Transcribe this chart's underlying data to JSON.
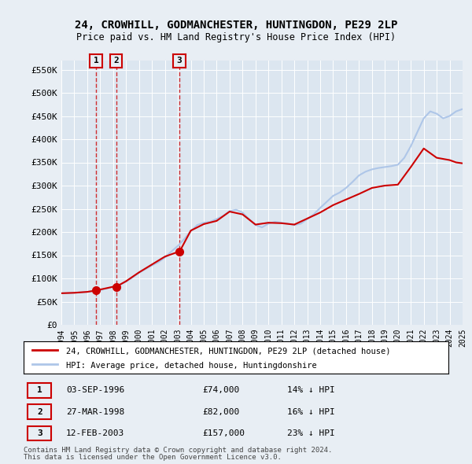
{
  "title": "24, CROWHILL, GODMANCHESTER, HUNTINGDON, PE29 2LP",
  "subtitle": "Price paid vs. HM Land Registry's House Price Index (HPI)",
  "ylabel_ticks": [
    "£0",
    "£50K",
    "£100K",
    "£150K",
    "£200K",
    "£250K",
    "£300K",
    "£350K",
    "£400K",
    "£450K",
    "£500K",
    "£550K"
  ],
  "ytick_values": [
    0,
    50000,
    100000,
    150000,
    200000,
    250000,
    300000,
    350000,
    400000,
    450000,
    500000,
    550000
  ],
  "ylim": [
    0,
    570000
  ],
  "xmin": 1994,
  "xmax": 2025,
  "hpi_color": "#aec6e8",
  "price_color": "#cc0000",
  "bg_color": "#e8eef4",
  "plot_bg": "#dce6f0",
  "legend_label_red": "24, CROWHILL, GODMANCHESTER, HUNTINGDON, PE29 2LP (detached house)",
  "legend_label_blue": "HPI: Average price, detached house, Huntingdonshire",
  "transactions": [
    {
      "num": 1,
      "date": "03-SEP-1996",
      "price": 74000,
      "pct": "14%",
      "year": 1996.67
    },
    {
      "num": 2,
      "date": "27-MAR-1998",
      "price": 82000,
      "pct": "16%",
      "year": 1998.23
    },
    {
      "num": 3,
      "date": "12-FEB-2003",
      "price": 157000,
      "pct": "23%",
      "year": 2003.12
    }
  ],
  "footnote1": "Contains HM Land Registry data © Crown copyright and database right 2024.",
  "footnote2": "This data is licensed under the Open Government Licence v3.0.",
  "hpi_x": [
    1994,
    1994.5,
    1995,
    1995.5,
    1996,
    1996.5,
    1997,
    1997.5,
    1998,
    1998.5,
    1999,
    1999.5,
    2000,
    2000.5,
    2001,
    2001.5,
    2002,
    2002.5,
    2003,
    2003.5,
    2004,
    2004.5,
    2005,
    2005.5,
    2006,
    2006.5,
    2007,
    2007.5,
    2008,
    2008.5,
    2009,
    2009.5,
    2010,
    2010.5,
    2011,
    2011.5,
    2012,
    2012.5,
    2013,
    2013.5,
    2014,
    2014.5,
    2015,
    2015.5,
    2016,
    2016.5,
    2017,
    2017.5,
    2018,
    2018.5,
    2019,
    2019.5,
    2020,
    2020.5,
    2021,
    2021.5,
    2022,
    2022.5,
    2023,
    2023.5,
    2024,
    2024.5,
    2025
  ],
  "hpi_y": [
    68000,
    68500,
    69000,
    70000,
    71000,
    73000,
    75000,
    78000,
    82000,
    86000,
    93000,
    102000,
    112000,
    120000,
    128000,
    135000,
    145000,
    158000,
    170000,
    185000,
    202000,
    215000,
    220000,
    222000,
    228000,
    235000,
    245000,
    248000,
    242000,
    228000,
    215000,
    210000,
    218000,
    222000,
    220000,
    218000,
    215000,
    218000,
    228000,
    238000,
    252000,
    265000,
    278000,
    285000,
    295000,
    308000,
    322000,
    330000,
    335000,
    338000,
    340000,
    342000,
    345000,
    360000,
    385000,
    415000,
    445000,
    460000,
    455000,
    445000,
    450000,
    460000,
    465000
  ],
  "price_x": [
    1994,
    1995,
    1996,
    1996.67,
    1997,
    1998,
    1998.23,
    1999,
    2000,
    2001,
    2002,
    2003,
    2003.12,
    2004,
    2005,
    2006,
    2007,
    2008,
    2009,
    2010,
    2011,
    2012,
    2013,
    2014,
    2015,
    2016,
    2017,
    2018,
    2019,
    2020,
    2021,
    2022,
    2023,
    2024,
    2024.5,
    2025
  ],
  "price_y": [
    68000,
    69000,
    71000,
    74000,
    76000,
    82000,
    82000,
    94000,
    113000,
    130000,
    147000,
    157000,
    157000,
    203000,
    217000,
    224000,
    244000,
    238000,
    216000,
    220000,
    219000,
    216000,
    229000,
    242000,
    258000,
    270000,
    282000,
    295000,
    300000,
    302000,
    340000,
    380000,
    360000,
    355000,
    350000,
    348000
  ]
}
